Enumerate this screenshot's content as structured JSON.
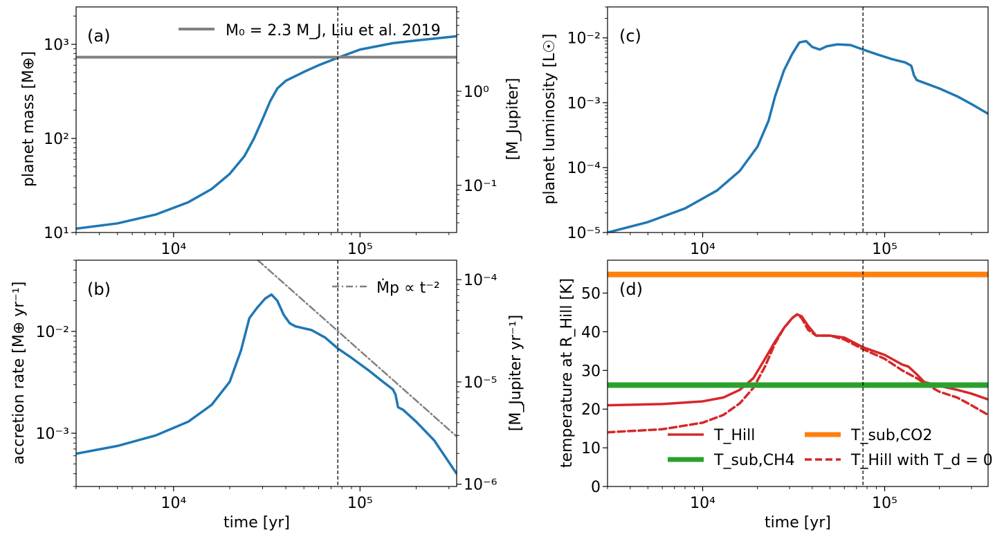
{
  "colors": {
    "blue": "#1f77b4",
    "gray": "#808080",
    "red": "#d62728",
    "green": "#2ca02c",
    "orange": "#ff7f0e",
    "black": "#000000"
  },
  "chart_data": [
    {
      "id": "a",
      "type": "line",
      "panel_label": "(a)",
      "xscale": "log",
      "yscale": "log",
      "xlim": [
        3000,
        330000
      ],
      "ylim": [
        10,
        2500
      ],
      "xlabel": "",
      "ylabel": "planet mass [M⊕]",
      "x_ticks": [
        {
          "v": 10000,
          "label": "10⁴"
        },
        {
          "v": 100000,
          "label": "10⁵"
        }
      ],
      "y_ticks": [
        {
          "v": 10,
          "label": "10¹"
        },
        {
          "v": 100,
          "label": "10²"
        },
        {
          "v": 1000,
          "label": "10³"
        }
      ],
      "right_axis": {
        "label": "[M_Jupiter]",
        "ylim": [
          0.0315,
          7.87
        ],
        "ticks": [
          {
            "v": 0.1,
            "label": "10⁻¹"
          },
          {
            "v": 1,
            "label": "10⁰"
          }
        ]
      },
      "vline_x": 76000,
      "series": [
        {
          "name": "planet mass",
          "color": "#1f77b4",
          "style": "solid",
          "width": 3.5,
          "x": [
            3000,
            5000,
            8000,
            12000,
            16000,
            20000,
            24000,
            27000,
            30000,
            33000,
            36000,
            40000,
            50000,
            60000,
            76000,
            100000,
            150000,
            200000,
            330000
          ],
          "y": [
            11,
            12.5,
            15.5,
            21,
            29,
            42,
            65,
            100,
            160,
            250,
            340,
            410,
            510,
            600,
            720,
            880,
            1030,
            1100,
            1220
          ]
        },
        {
          "name": "M₀ = 2.3 M_J, Liu et al. 2019",
          "color": "#808080",
          "style": "solid",
          "width": 4,
          "hline_y": 730
        }
      ],
      "legend": [
        {
          "label": "M₀ = 2.3 M_J, Liu et al. 2019",
          "color": "#808080",
          "style": "solid"
        }
      ],
      "legend_position": "top-center"
    },
    {
      "id": "b",
      "type": "line",
      "panel_label": "(b)",
      "xscale": "log",
      "yscale": "log",
      "xlim": [
        3000,
        330000
      ],
      "ylim": [
        0.0003,
        0.05
      ],
      "xlabel": "time [yr]",
      "ylabel": "accretion rate [M⊕ yr⁻¹]",
      "x_ticks": [
        {
          "v": 10000,
          "label": "10⁴"
        },
        {
          "v": 100000,
          "label": "10⁵"
        }
      ],
      "y_ticks": [
        {
          "v": 0.001,
          "label": "10⁻³"
        },
        {
          "v": 0.01,
          "label": "10⁻²"
        }
      ],
      "right_axis": {
        "label": "[M_Jupiter yr⁻¹]",
        "ylim": [
          9.5e-07,
          0.000155
        ],
        "ticks": [
          {
            "v": 1e-06,
            "label": "10⁻⁶"
          },
          {
            "v": 1e-05,
            "label": "10⁻⁵"
          },
          {
            "v": 0.0001,
            "label": "10⁻⁴"
          }
        ]
      },
      "vline_x": 76000,
      "series": [
        {
          "name": "accretion rate",
          "color": "#1f77b4",
          "style": "solid",
          "width": 3.5,
          "x": [
            3000,
            5000,
            8000,
            12000,
            16000,
            20000,
            23000,
            25500,
            28000,
            31000,
            33500,
            36000,
            39000,
            42000,
            45000,
            55000,
            65000,
            76000,
            90000,
            110000,
            130000,
            150000,
            155000,
            160000,
            170000,
            200000,
            250000,
            330000
          ],
          "y": [
            0.00063,
            0.00075,
            0.00095,
            0.0013,
            0.0019,
            0.0032,
            0.0065,
            0.0135,
            0.017,
            0.021,
            0.023,
            0.02,
            0.0145,
            0.012,
            0.0112,
            0.0103,
            0.0087,
            0.0068,
            0.0055,
            0.0042,
            0.0033,
            0.0027,
            0.0024,
            0.0018,
            0.0017,
            0.0013,
            0.00085,
            0.0004
          ]
        },
        {
          "name": "Ṁp ∝ t⁻²",
          "color": "#808080",
          "style": "dashdot",
          "width": 2.5,
          "x": [
            28300,
            330000
          ],
          "y": [
            0.05,
            0.00093
          ]
        }
      ],
      "legend": [
        {
          "label": "Ṁp ∝ t⁻²",
          "color": "#808080",
          "style": "dashdot"
        }
      ],
      "legend_position": "top-right"
    },
    {
      "id": "c",
      "type": "line",
      "panel_label": "(c)",
      "xscale": "log",
      "yscale": "log",
      "xlim": [
        3000,
        370000
      ],
      "ylim": [
        1e-05,
        0.03
      ],
      "xlabel": "",
      "ylabel": "planet luminosity [L☉]",
      "x_ticks": [
        {
          "v": 10000,
          "label": "10⁴"
        },
        {
          "v": 100000,
          "label": "10⁵"
        }
      ],
      "y_ticks": [
        {
          "v": 1e-05,
          "label": "10⁻⁵"
        },
        {
          "v": 0.0001,
          "label": "10⁻⁴"
        },
        {
          "v": 0.001,
          "label": "10⁻³"
        },
        {
          "v": 0.01,
          "label": "10⁻²"
        }
      ],
      "vline_x": 76000,
      "series": [
        {
          "name": "planet luminosity",
          "color": "#1f77b4",
          "style": "solid",
          "width": 3.5,
          "x": [
            3000,
            5000,
            8000,
            12000,
            16000,
            20000,
            23000,
            25000,
            28000,
            31000,
            34000,
            37000,
            40000,
            44000,
            48000,
            55000,
            65000,
            76000,
            90000,
            110000,
            130000,
            140000,
            145000,
            150000,
            200000,
            250000,
            300000,
            370000
          ],
          "y": [
            1e-05,
            1.45e-05,
            2.35e-05,
            4.45e-05,
            8.91e-05,
            0.00021,
            0.000525,
            0.00126,
            0.00316,
            0.00562,
            0.00851,
            0.00891,
            0.00724,
            0.00661,
            0.00741,
            0.00794,
            0.00776,
            0.00661,
            0.00562,
            0.00468,
            0.00417,
            0.00372,
            0.00263,
            0.00224,
            0.00166,
            0.00126,
            0.000955,
            0.000676
          ]
        }
      ]
    },
    {
      "id": "d",
      "type": "line",
      "panel_label": "(d)",
      "xscale": "log",
      "yscale": "linear",
      "xlim": [
        3000,
        370000
      ],
      "ylim": [
        0,
        58.5
      ],
      "xlabel": "time [yr]",
      "ylabel": "temperature at R_Hill [K]",
      "x_ticks": [
        {
          "v": 10000,
          "label": "10⁴"
        },
        {
          "v": 100000,
          "label": "10⁵"
        }
      ],
      "y_ticks": [
        {
          "v": 0,
          "label": "0"
        },
        {
          "v": 10,
          "label": "10"
        },
        {
          "v": 20,
          "label": "20"
        },
        {
          "v": 30,
          "label": "30"
        },
        {
          "v": 40,
          "label": "40"
        },
        {
          "v": 50,
          "label": "50"
        }
      ],
      "vline_x": 76000,
      "series": [
        {
          "name": "T_Hill",
          "color": "#d62728",
          "style": "solid",
          "width": 3.5,
          "x": [
            3000,
            6000,
            10000,
            13000,
            16000,
            19000,
            22000,
            25000,
            28000,
            31000,
            33000,
            35000,
            38000,
            42000,
            50000,
            60000,
            76000,
            100000,
            125000,
            135000,
            150000,
            165000,
            200000,
            250000,
            300000,
            370000
          ],
          "y": [
            21,
            21.3,
            22,
            23,
            25,
            28,
            33,
            37.5,
            41,
            43.5,
            44.5,
            44,
            41.5,
            39,
            39,
            38.5,
            36,
            34,
            31.5,
            31,
            29,
            27,
            26,
            25,
            24,
            22.5
          ]
        },
        {
          "name": "T_Hill with T_d = 0",
          "color": "#d62728",
          "style": "dashed",
          "width": 3.5,
          "x": [
            3000,
            6000,
            10000,
            13000,
            16000,
            19000,
            22000,
            25000,
            28000,
            31000,
            33000,
            35000,
            38000,
            42000,
            50000,
            60000,
            76000,
            100000,
            125000,
            150000,
            175000,
            200000,
            250000,
            300000,
            370000
          ],
          "y": [
            14,
            14.8,
            16.5,
            18.5,
            21.5,
            25.5,
            31,
            37,
            41,
            43.5,
            44.5,
            43.5,
            40.5,
            39,
            39,
            38,
            35.5,
            33,
            30,
            28,
            26,
            24.5,
            23,
            21,
            18.5
          ]
        },
        {
          "name": "T_sub,CH4",
          "color": "#2ca02c",
          "style": "solid",
          "width": 8,
          "hline_y": 26.2
        },
        {
          "name": "T_sub,CO2",
          "color": "#ff7f0e",
          "style": "solid",
          "width": 8,
          "hline_y": 54.8
        }
      ],
      "legend": [
        {
          "label": "T_Hill",
          "color": "#d62728",
          "style": "solid"
        },
        {
          "label": "T_sub,CO2",
          "color": "#ff7f0e",
          "style": "solid"
        },
        {
          "label": "T_sub,CH4",
          "color": "#2ca02c",
          "style": "solid"
        },
        {
          "label": "T_Hill with T_d = 0",
          "color": "#d62728",
          "style": "dashed"
        }
      ],
      "legend_position": "lower-right"
    }
  ]
}
